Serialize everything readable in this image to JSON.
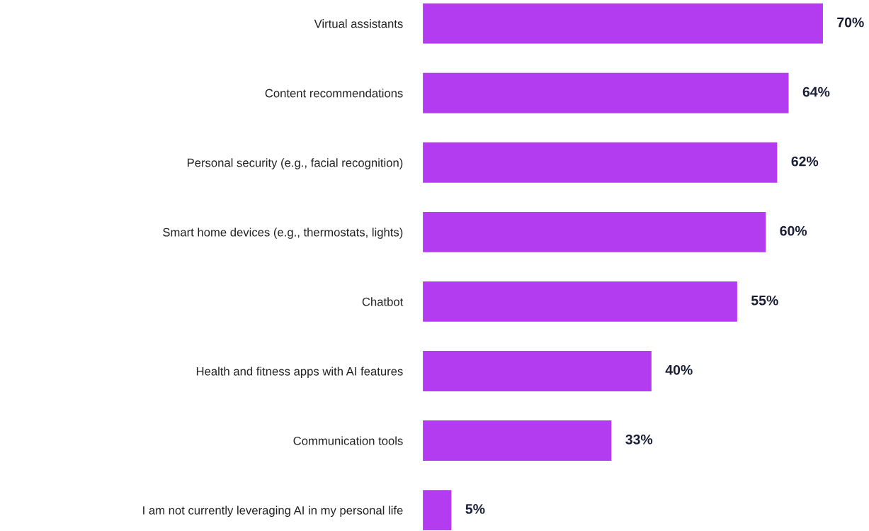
{
  "chart_data": {
    "type": "bar",
    "orientation": "horizontal",
    "categories": [
      "Virtual assistants",
      "Content recommendations",
      "Personal security (e.g., facial recognition)",
      "Smart home devices (e.g., thermostats, lights)",
      "Chatbot",
      "Health and fitness apps with AI features",
      "Communication tools",
      "I am not currently leveraging AI in my personal life"
    ],
    "values": [
      70,
      64,
      62,
      60,
      55,
      40,
      33,
      5
    ],
    "value_labels": [
      "70%",
      "64%",
      "62%",
      "60%",
      "55%",
      "40%",
      "33%",
      "5%"
    ],
    "color": "#b43cf0",
    "grid": false,
    "legend": false
  }
}
